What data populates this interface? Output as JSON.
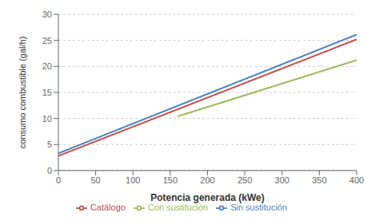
{
  "chart_data": {
    "type": "line",
    "xlabel": "Potencia generada (kWe)",
    "ylabel": "consumo combustible (gal/h)",
    "xlim": [
      0,
      400
    ],
    "ylim": [
      0,
      30
    ],
    "xticks": [
      0,
      50,
      100,
      150,
      200,
      250,
      300,
      350,
      400
    ],
    "yticks": [
      0,
      5,
      10,
      15,
      20,
      25,
      30
    ],
    "grid": true,
    "legend": "bottom",
    "series": [
      {
        "name": "Catálogo",
        "color": "#c0504d",
        "x": [
          0,
          400
        ],
        "values": [
          2.8,
          25.2
        ]
      },
      {
        "name": "Sin sustitución",
        "color": "#4f81bd",
        "x": [
          0,
          400
        ],
        "values": [
          3.3,
          26.1
        ]
      },
      {
        "name": "Con sustitución",
        "color": "#9bbb59",
        "x": [
          160,
          400
        ],
        "values": [
          10.4,
          21.2
        ]
      }
    ]
  }
}
